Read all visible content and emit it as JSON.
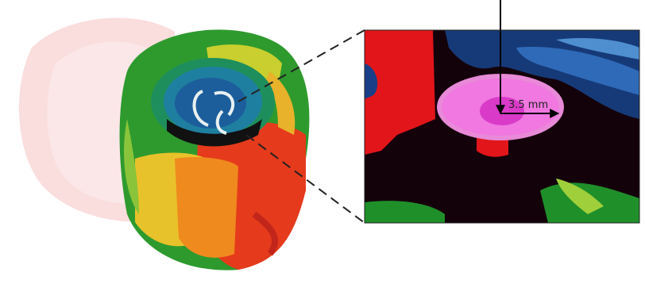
{
  "inset": {
    "scale_label": "3.5 mm"
  }
}
